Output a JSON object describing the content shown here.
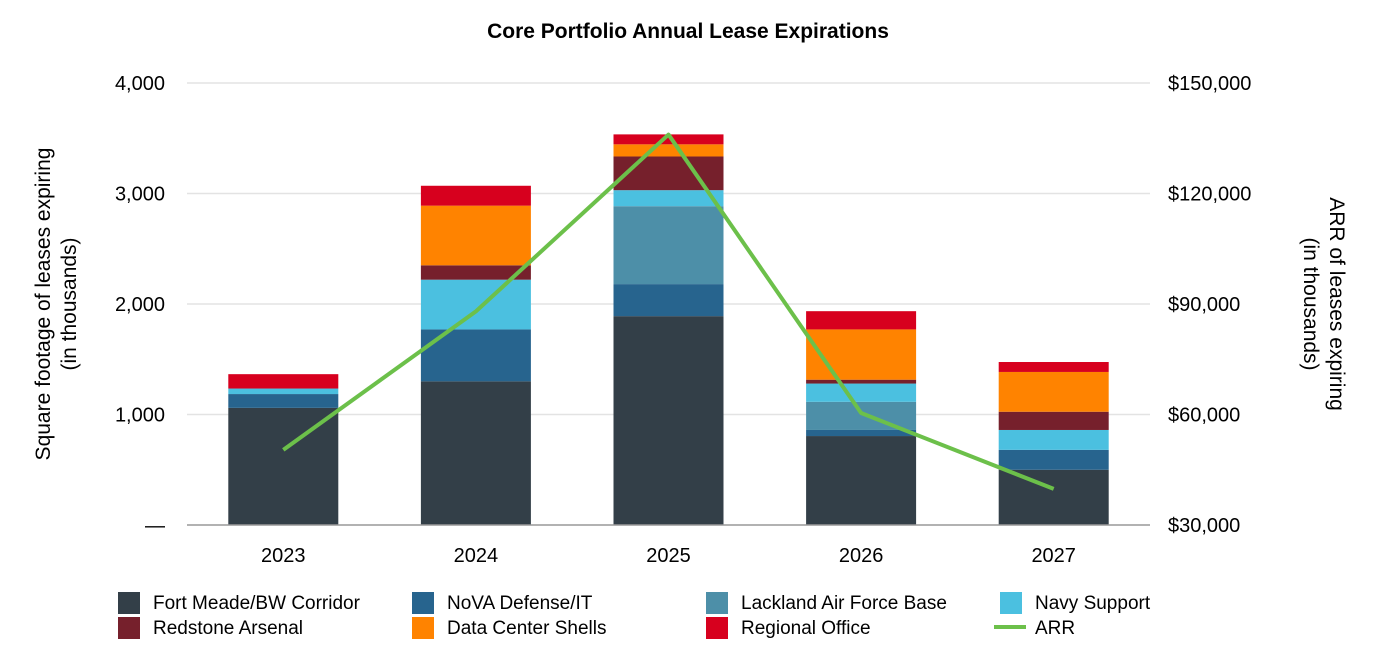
{
  "chart_data": {
    "type": "bar",
    "stacked": true,
    "title": "Core Portfolio Annual Lease Expirations",
    "ylabel": "Square footage of leases expiring\n(in thousands)",
    "y2label": "ARR of leases expiring\n(in thousands)",
    "categories": [
      "2023",
      "2024",
      "2025",
      "2026",
      "2027"
    ],
    "ylim": [
      0,
      4000
    ],
    "yticks": [
      0,
      1000,
      2000,
      3000,
      4000
    ],
    "ytick_labels": [
      "—",
      "1,000",
      "2,000",
      "3,000",
      "4,000"
    ],
    "y2lim": [
      30000,
      150000
    ],
    "y2ticks": [
      30000,
      60000,
      90000,
      120000,
      150000
    ],
    "y2tick_labels": [
      "$30,000",
      "$60,000",
      "$90,000",
      "$120,000",
      "$150,000"
    ],
    "grid": true,
    "legend_position": "bottom",
    "series": [
      {
        "name": "Fort Meade/BW Corridor",
        "color": "#333f48",
        "values": [
          1060,
          1300,
          1890,
          805,
          500
        ]
      },
      {
        "name": "NoVA Defense/IT",
        "color": "#27648e",
        "values": [
          125,
          470,
          290,
          55,
          180
        ]
      },
      {
        "name": "Lackland Air Force Base",
        "color": "#4d8fa8",
        "values": [
          0,
          0,
          705,
          255,
          0
        ]
      },
      {
        "name": "Navy Support",
        "color": "#4bc0e0",
        "values": [
          50,
          450,
          145,
          165,
          180
        ]
      },
      {
        "name": "Redstone Arsenal",
        "color": "#76202c",
        "values": [
          0,
          130,
          305,
          35,
          165
        ]
      },
      {
        "name": "Data Center Shells",
        "color": "#ff8300",
        "values": [
          0,
          540,
          110,
          455,
          360
        ]
      },
      {
        "name": "Regional Office",
        "color": "#d7001e",
        "values": [
          130,
          180,
          90,
          165,
          90
        ]
      }
    ],
    "line_series": {
      "name": "ARR",
      "color": "#6cc04a",
      "axis": "right",
      "values": [
        50400,
        88000,
        136000,
        60400,
        39800
      ]
    }
  }
}
